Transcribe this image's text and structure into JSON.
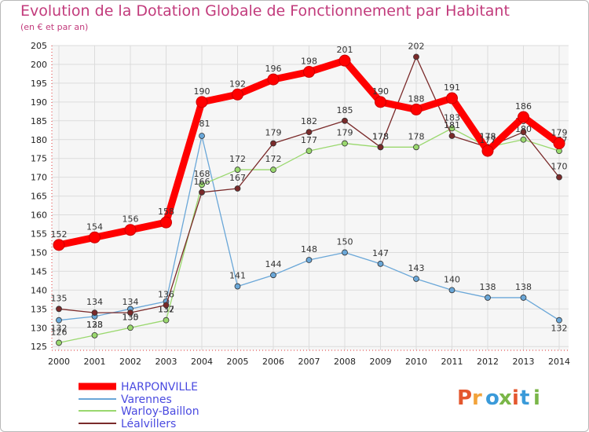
{
  "header": {
    "title": "Evolution de la Dotation Globale de Fonctionnement par Habitant",
    "subtitle": "(en € et par an)"
  },
  "logo": {
    "text": "Proxiti",
    "colors": [
      "#e4572e",
      "#f2a33a",
      "#3a9ad9",
      "#7ab648",
      "#e4572e",
      "#3a9ad9",
      "#7ab648"
    ]
  },
  "chart_data": {
    "type": "line",
    "title": "Evolution de la Dotation Globale de Fonctionnement par Habitant",
    "ylabel": "(en € et par an)",
    "xlabel": "",
    "x": [
      "2000",
      "2001",
      "2002",
      "2003",
      "2004",
      "2005",
      "2006",
      "2007",
      "2008",
      "2009",
      "2010",
      "2011",
      "2012",
      "2013",
      "2014"
    ],
    "ylim": [
      124,
      205
    ],
    "yticks": [
      125,
      130,
      135,
      140,
      145,
      150,
      155,
      160,
      165,
      170,
      175,
      180,
      185,
      190,
      195,
      200,
      205
    ],
    "grid": true,
    "series": [
      {
        "name": "HARPONVILLE",
        "color": "#ff0000",
        "values": [
          152,
          154,
          156,
          158,
          190,
          192,
          196,
          198,
          201,
          190,
          188,
          191,
          177,
          186,
          179
        ]
      },
      {
        "name": "Varennes",
        "color": "#6aa7d8",
        "values": [
          132,
          133,
          135,
          137,
          181,
          141,
          144,
          148,
          150,
          147,
          143,
          140,
          138,
          138,
          132
        ]
      },
      {
        "name": "Warloy-Baillon",
        "color": "#9ad86e",
        "values": [
          126,
          128,
          130,
          132,
          168,
          172,
          172,
          177,
          179,
          178,
          178,
          183,
          178,
          180,
          177
        ]
      },
      {
        "name": "Léalvillers",
        "color": "#7a2a2a",
        "values": [
          135,
          134,
          134,
          136,
          166,
          167,
          179,
          182,
          185,
          178,
          202,
          181,
          178,
          182,
          170
        ]
      }
    ]
  }
}
